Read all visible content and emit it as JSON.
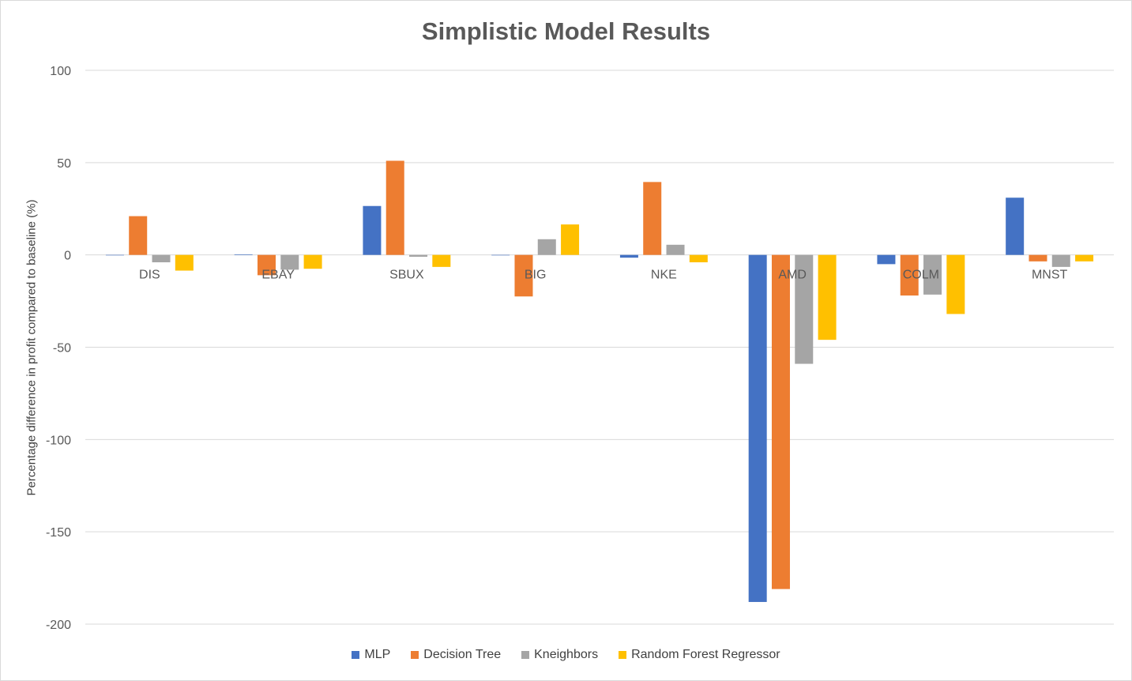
{
  "chart_data": {
    "type": "bar",
    "title": "Simplistic Model Results",
    "xlabel": "",
    "ylabel": "Percentage difference in profit compared to baseline (%)",
    "ylim": [
      -200,
      100
    ],
    "yticks": [
      100,
      50,
      0,
      -50,
      -100,
      -150,
      -200
    ],
    "grid": true,
    "legend_position": "bottom",
    "categories": [
      "DIS",
      "EBAY",
      "SBUX",
      "BIG",
      "NKE",
      "AMD",
      "COLM",
      "MNST"
    ],
    "series": [
      {
        "name": "MLP",
        "color": "#4472c4",
        "values": [
          0,
          0.3,
          26.5,
          0,
          -1.5,
          -188,
          -5,
          31
        ]
      },
      {
        "name": "Decision Tree",
        "color": "#ed7d31",
        "values": [
          21,
          -11,
          51,
          -22.5,
          39.5,
          -181,
          -22,
          -3.5
        ]
      },
      {
        "name": "Kneighbors",
        "color": "#a5a5a5",
        "values": [
          -4,
          -8,
          -1,
          8.5,
          5.5,
          -59,
          -21.5,
          -6.5
        ]
      },
      {
        "name": "Random Forest Regressor",
        "color": "#ffc000",
        "values": [
          -8.5,
          -7.5,
          -6.5,
          16.5,
          -4,
          -46,
          -32,
          -3.5
        ]
      }
    ]
  }
}
